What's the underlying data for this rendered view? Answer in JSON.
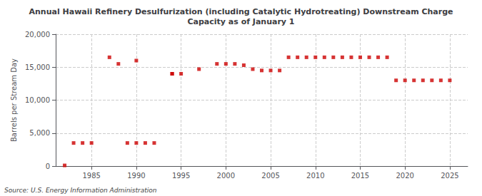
{
  "chart_data": {
    "type": "scatter",
    "title": "Annual Hawaii Refinery Desulfurization (including Catalytic Hydrotreating) Downstream Charge\nCapacity as of January 1",
    "ylabel": "Barrels per Stream Day",
    "annotation": "Source: U.S. Energy Information Administration",
    "x": [
      1982,
      1983,
      1984,
      1985,
      1987,
      1988,
      1989,
      1990,
      1990,
      1991,
      1992,
      1994,
      1994,
      1995,
      1997,
      1999,
      2000,
      2001,
      2002,
      2003,
      2004,
      2005,
      2006,
      2007,
      2008,
      2009,
      2010,
      2011,
      2012,
      2013,
      2014,
      2015,
      2016,
      2017,
      2018,
      2019,
      2020,
      2021,
      2022,
      2023,
      2024,
      2025
    ],
    "values": [
      100,
      3500,
      3500,
      3500,
      16500,
      15500,
      3500,
      3500,
      16000,
      3500,
      3500,
      14000,
      14000,
      14000,
      14700,
      15500,
      15500,
      15500,
      15300,
      14700,
      14500,
      14500,
      14500,
      16500,
      16500,
      16500,
      16500,
      16500,
      16500,
      16500,
      16500,
      16500,
      16500,
      16500,
      16500,
      13000,
      13000,
      13000,
      13000,
      13000,
      13000,
      13000
    ],
    "color": "#cc0000",
    "marker": "square",
    "xlim": [
      1981,
      2027
    ],
    "xticks": [
      1985,
      1990,
      1995,
      2000,
      2005,
      2010,
      2015,
      2020,
      2025
    ],
    "ylim": [
      0,
      20000
    ],
    "yticks": [
      0,
      {
        "value": 5000,
        "label": "5,000"
      },
      {
        "value": 10000,
        "label": "10,000"
      },
      {
        "value": 15000,
        "label": "15,000"
      },
      {
        "value": 20000,
        "label": "20,000"
      }
    ],
    "grid": true
  }
}
